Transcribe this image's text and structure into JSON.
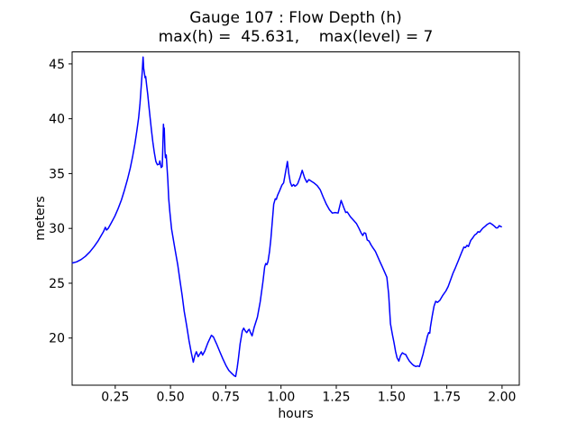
{
  "chart": {
    "title_line1": "Gauge 107 : Flow Depth (h)",
    "title_line2": "max(h) =  45.631,    max(level) = 7",
    "xlabel": "hours",
    "ylabel": "meters"
  },
  "chart_data": {
    "type": "line",
    "title": "Gauge 107 : Flow Depth (h)",
    "subtitle": "max(h) =  45.631,    max(level) = 7",
    "xlabel": "hours",
    "ylabel": "meters",
    "max_h": 45.631,
    "max_level": 7,
    "xlim": [
      0.055,
      2.078
    ],
    "ylim": [
      15.7,
      46.1
    ],
    "x_ticks": [
      0.25,
      0.5,
      0.75,
      1.0,
      1.25,
      1.5,
      1.75,
      2.0
    ],
    "x_tick_labels": [
      "0.25",
      "0.50",
      "0.75",
      "1.00",
      "1.25",
      "1.50",
      "1.75",
      "2.00"
    ],
    "y_ticks": [
      20,
      25,
      30,
      35,
      40,
      45
    ],
    "y_tick_labels": [
      "20",
      "25",
      "30",
      "35",
      "40",
      "45"
    ],
    "grid": false,
    "legend": "none",
    "line_color": "#0000ff",
    "line_width": 1.5,
    "series": [
      {
        "name": "h",
        "points": [
          [
            0.057,
            26.85
          ],
          [
            0.075,
            26.95
          ],
          [
            0.095,
            27.15
          ],
          [
            0.115,
            27.45
          ],
          [
            0.135,
            27.85
          ],
          [
            0.155,
            28.35
          ],
          [
            0.172,
            28.85
          ],
          [
            0.188,
            29.4
          ],
          [
            0.197,
            29.7
          ],
          [
            0.205,
            30.1
          ],
          [
            0.211,
            29.85
          ],
          [
            0.218,
            30.0
          ],
          [
            0.232,
            30.5
          ],
          [
            0.248,
            31.1
          ],
          [
            0.263,
            31.8
          ],
          [
            0.278,
            32.6
          ],
          [
            0.292,
            33.5
          ],
          [
            0.306,
            34.5
          ],
          [
            0.318,
            35.5
          ],
          [
            0.329,
            36.6
          ],
          [
            0.339,
            37.7
          ],
          [
            0.348,
            38.9
          ],
          [
            0.356,
            40.1
          ],
          [
            0.362,
            41.4
          ],
          [
            0.367,
            42.8
          ],
          [
            0.372,
            44.2
          ],
          [
            0.376,
            45.63
          ],
          [
            0.379,
            44.6
          ],
          [
            0.382,
            44.15
          ],
          [
            0.385,
            43.75
          ],
          [
            0.388,
            43.85
          ],
          [
            0.392,
            43.1
          ],
          [
            0.397,
            42.2
          ],
          [
            0.402,
            41.2
          ],
          [
            0.408,
            40.1
          ],
          [
            0.414,
            38.95
          ],
          [
            0.42,
            37.9
          ],
          [
            0.427,
            36.9
          ],
          [
            0.434,
            36.1
          ],
          [
            0.441,
            35.8
          ],
          [
            0.448,
            35.85
          ],
          [
            0.452,
            36.15
          ],
          [
            0.458,
            35.55
          ],
          [
            0.463,
            35.65
          ],
          [
            0.466,
            38.0
          ],
          [
            0.468,
            39.5
          ],
          [
            0.47,
            38.85
          ],
          [
            0.472,
            39.15
          ],
          [
            0.475,
            37.0
          ],
          [
            0.477,
            36.45
          ],
          [
            0.481,
            36.7
          ],
          [
            0.484,
            35.65
          ],
          [
            0.488,
            34.35
          ],
          [
            0.492,
            32.75
          ],
          [
            0.497,
            31.5
          ],
          [
            0.505,
            29.95
          ],
          [
            0.519,
            28.25
          ],
          [
            0.533,
            26.65
          ],
          [
            0.543,
            25.25
          ],
          [
            0.553,
            23.85
          ],
          [
            0.562,
            22.45
          ],
          [
            0.573,
            21.15
          ],
          [
            0.584,
            19.75
          ],
          [
            0.594,
            18.65
          ],
          [
            0.603,
            17.8
          ],
          [
            0.611,
            18.45
          ],
          [
            0.617,
            18.75
          ],
          [
            0.625,
            18.3
          ],
          [
            0.639,
            18.75
          ],
          [
            0.645,
            18.45
          ],
          [
            0.655,
            18.8
          ],
          [
            0.669,
            19.55
          ],
          [
            0.685,
            20.25
          ],
          [
            0.694,
            20.1
          ],
          [
            0.709,
            19.45
          ],
          [
            0.723,
            18.75
          ],
          [
            0.737,
            18.1
          ],
          [
            0.751,
            17.5
          ],
          [
            0.764,
            17.05
          ],
          [
            0.778,
            16.75
          ],
          [
            0.789,
            16.55
          ],
          [
            0.795,
            16.5
          ],
          [
            0.802,
            17.3
          ],
          [
            0.807,
            18.1
          ],
          [
            0.815,
            19.45
          ],
          [
            0.825,
            20.65
          ],
          [
            0.831,
            20.9
          ],
          [
            0.838,
            20.65
          ],
          [
            0.845,
            20.5
          ],
          [
            0.851,
            20.7
          ],
          [
            0.856,
            20.8
          ],
          [
            0.863,
            20.45
          ],
          [
            0.869,
            20.2
          ],
          [
            0.879,
            21.0
          ],
          [
            0.893,
            21.9
          ],
          [
            0.906,
            23.3
          ],
          [
            0.918,
            25.1
          ],
          [
            0.926,
            26.5
          ],
          [
            0.931,
            26.8
          ],
          [
            0.936,
            26.7
          ],
          [
            0.941,
            26.95
          ],
          [
            0.948,
            27.85
          ],
          [
            0.954,
            29.0
          ],
          [
            0.961,
            30.7
          ],
          [
            0.967,
            32.2
          ],
          [
            0.974,
            32.7
          ],
          [
            0.979,
            32.65
          ],
          [
            0.984,
            33.0
          ],
          [
            0.994,
            33.45
          ],
          [
            1.004,
            33.95
          ],
          [
            1.012,
            34.15
          ],
          [
            1.022,
            35.3
          ],
          [
            1.029,
            36.1
          ],
          [
            1.035,
            35.0
          ],
          [
            1.042,
            34.2
          ],
          [
            1.049,
            33.85
          ],
          [
            1.057,
            34.0
          ],
          [
            1.063,
            33.85
          ],
          [
            1.07,
            33.95
          ],
          [
            1.076,
            34.1
          ],
          [
            1.087,
            34.7
          ],
          [
            1.096,
            35.3
          ],
          [
            1.107,
            34.6
          ],
          [
            1.117,
            34.2
          ],
          [
            1.126,
            34.45
          ],
          [
            1.137,
            34.3
          ],
          [
            1.149,
            34.15
          ],
          [
            1.164,
            33.9
          ],
          [
            1.178,
            33.5
          ],
          [
            1.191,
            32.85
          ],
          [
            1.205,
            32.2
          ],
          [
            1.219,
            31.7
          ],
          [
            1.232,
            31.4
          ],
          [
            1.245,
            31.45
          ],
          [
            1.258,
            31.4
          ],
          [
            1.266,
            32.05
          ],
          [
            1.272,
            32.55
          ],
          [
            1.284,
            31.9
          ],
          [
            1.293,
            31.45
          ],
          [
            1.3,
            31.5
          ],
          [
            1.314,
            31.05
          ],
          [
            1.328,
            30.75
          ],
          [
            1.341,
            30.45
          ],
          [
            1.353,
            30.0
          ],
          [
            1.362,
            29.6
          ],
          [
            1.37,
            29.35
          ],
          [
            1.376,
            29.6
          ],
          [
            1.383,
            29.55
          ],
          [
            1.39,
            28.95
          ],
          [
            1.398,
            28.85
          ],
          [
            1.407,
            28.5
          ],
          [
            1.417,
            28.2
          ],
          [
            1.427,
            27.9
          ],
          [
            1.438,
            27.4
          ],
          [
            1.449,
            26.9
          ],
          [
            1.458,
            26.5
          ],
          [
            1.469,
            26.0
          ],
          [
            1.479,
            25.55
          ],
          [
            1.487,
            24.0
          ],
          [
            1.495,
            21.3
          ],
          [
            1.504,
            20.3
          ],
          [
            1.511,
            19.6
          ],
          [
            1.518,
            18.8
          ],
          [
            1.525,
            18.2
          ],
          [
            1.533,
            17.9
          ],
          [
            1.541,
            18.4
          ],
          [
            1.549,
            18.65
          ],
          [
            1.557,
            18.55
          ],
          [
            1.564,
            18.5
          ],
          [
            1.572,
            18.2
          ],
          [
            1.581,
            17.9
          ],
          [
            1.592,
            17.65
          ],
          [
            1.6,
            17.5
          ],
          [
            1.61,
            17.4
          ],
          [
            1.618,
            17.45
          ],
          [
            1.626,
            17.4
          ],
          [
            1.635,
            18.0
          ],
          [
            1.643,
            18.55
          ],
          [
            1.649,
            19.1
          ],
          [
            1.656,
            19.6
          ],
          [
            1.662,
            20.15
          ],
          [
            1.668,
            20.5
          ],
          [
            1.673,
            20.45
          ],
          [
            1.676,
            21.0
          ],
          [
            1.684,
            22.0
          ],
          [
            1.692,
            22.9
          ],
          [
            1.7,
            23.35
          ],
          [
            1.708,
            23.25
          ],
          [
            1.719,
            23.45
          ],
          [
            1.732,
            23.9
          ],
          [
            1.746,
            24.3
          ],
          [
            1.756,
            24.7
          ],
          [
            1.769,
            25.4
          ],
          [
            1.778,
            25.9
          ],
          [
            1.789,
            26.4
          ],
          [
            1.803,
            27.1
          ],
          [
            1.817,
            27.8
          ],
          [
            1.827,
            28.3
          ],
          [
            1.834,
            28.25
          ],
          [
            1.841,
            28.45
          ],
          [
            1.848,
            28.35
          ],
          [
            1.858,
            28.9
          ],
          [
            1.868,
            29.15
          ],
          [
            1.876,
            29.4
          ],
          [
            1.884,
            29.5
          ],
          [
            1.891,
            29.7
          ],
          [
            1.898,
            29.65
          ],
          [
            1.912,
            30.0
          ],
          [
            1.924,
            30.2
          ],
          [
            1.932,
            30.35
          ],
          [
            1.945,
            30.5
          ],
          [
            1.956,
            30.35
          ],
          [
            1.966,
            30.2
          ],
          [
            1.973,
            30.05
          ],
          [
            1.98,
            30.05
          ],
          [
            1.987,
            30.25
          ],
          [
            1.997,
            30.15
          ]
        ]
      }
    ]
  }
}
